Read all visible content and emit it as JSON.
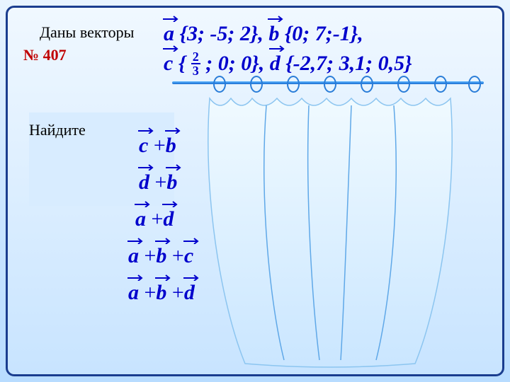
{
  "title": "Даны векторы",
  "problem_num": "№ 407",
  "find_label": "Найдите",
  "vectors": {
    "a_label": "a",
    "a_coords": " {3; -5; 2}, ",
    "b_label": "b",
    "b_coords": " {0; 7;-1},",
    "c_label": "c",
    "c_open": " { ",
    "c_frac_top": "2",
    "c_frac_bot": "3",
    "c_rest": " ; 0; 0}, ",
    "d_label": "d",
    "d_coords": " {-2,7; 3,1; 0,5}"
  },
  "expressions": {
    "e0": {
      "t1": "c",
      "op1": " +",
      "t2": "b"
    },
    "e1": {
      "t1": "d",
      "op1": " +",
      "t2": "b"
    },
    "e2": {
      "t1": "a",
      "op1": " +",
      "t2": "d"
    },
    "e3": {
      "t1": "a",
      "op1": " +",
      "t2": "b",
      "op2": " +",
      "t3": "c"
    },
    "e4": {
      "t1": "a",
      "op1": " +",
      "t2": "b",
      "op2": " +",
      "t3": "d"
    }
  },
  "style": {
    "arrow_color": "#0000cc",
    "ring_positions": [
      290,
      342,
      394,
      446,
      498,
      550,
      602,
      650
    ],
    "curtain_fill_top": "#f0faff",
    "curtain_fill_bot": "#cae6ff",
    "curtain_fold_color": "#5fa8e8"
  }
}
